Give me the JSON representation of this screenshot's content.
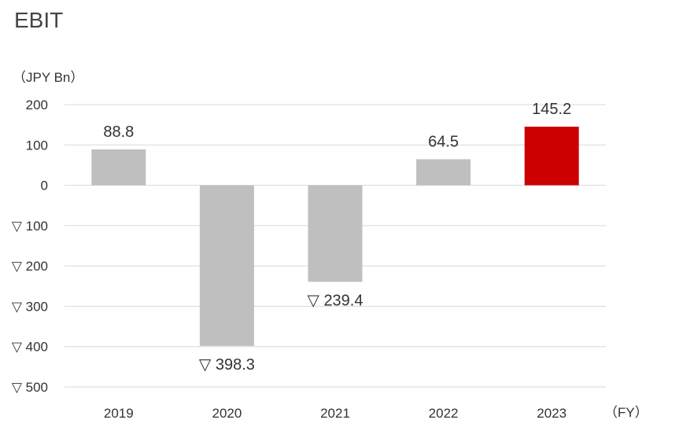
{
  "chart_data": {
    "type": "bar",
    "title": "EBIT",
    "ylabel": "（JPY Bn）",
    "xlabel": "（FY）",
    "categories": [
      "2019",
      "2020",
      "2021",
      "2022",
      "2023"
    ],
    "values": [
      88.8,
      -398.3,
      -239.4,
      64.5,
      145.2
    ],
    "data_labels": [
      "88.8",
      "▽ 398.3",
      "▽ 239.4",
      "64.5",
      "145.2"
    ],
    "yticks": [
      200,
      100,
      0,
      -100,
      -200,
      -300,
      -400,
      -500
    ],
    "ytick_labels": [
      "200",
      "100",
      "0",
      "▽ 100",
      "▽ 200",
      "▽ 300",
      "▽ 400",
      "▽ 500"
    ],
    "ylim": [
      -500,
      200
    ],
    "grid": true,
    "legend": "none",
    "colors": {
      "default": "#bfbfbf",
      "highlight": "#cc0000",
      "highlight_category": "2023",
      "grid": "#d9d9d9"
    }
  }
}
